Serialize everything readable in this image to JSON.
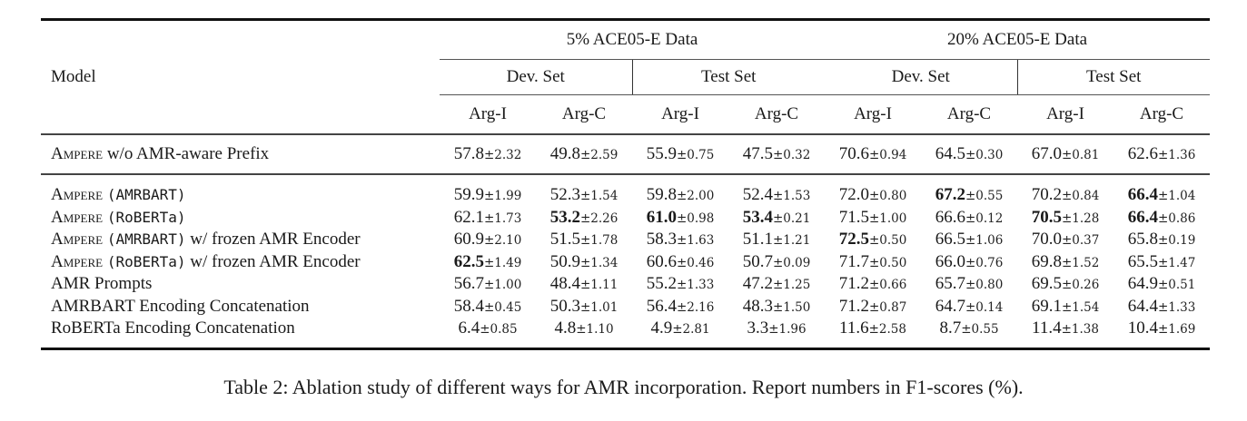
{
  "table": {
    "model_header": "Model",
    "groups": [
      {
        "label": "5% ACE05-E Data",
        "sets": [
          {
            "label": "Dev. Set"
          },
          {
            "label": "Test Set"
          }
        ]
      },
      {
        "label": "20% ACE05-E Data",
        "sets": [
          {
            "label": "Dev. Set"
          },
          {
            "label": "Test Set"
          }
        ]
      }
    ],
    "metrics": [
      "Arg-I",
      "Arg-C",
      "Arg-I",
      "Arg-C",
      "Arg-I",
      "Arg-C",
      "Arg-I",
      "Arg-C"
    ],
    "rows": [
      {
        "model": {
          "prefix": "Ampere",
          "enc": "",
          "suffix": " w/o AMR-aware Prefix"
        },
        "cells": [
          {
            "v": "57.8",
            "sd": "±2.32",
            "bold": false
          },
          {
            "v": "49.8",
            "sd": "±2.59",
            "bold": false
          },
          {
            "v": "55.9",
            "sd": "±0.75",
            "bold": false
          },
          {
            "v": "47.5",
            "sd": "±0.32",
            "bold": false
          },
          {
            "v": "70.6",
            "sd": "±0.94",
            "bold": false
          },
          {
            "v": "64.5",
            "sd": "±0.30",
            "bold": false
          },
          {
            "v": "67.0",
            "sd": "±0.81",
            "bold": false
          },
          {
            "v": "62.6",
            "sd": "±1.36",
            "bold": false
          }
        ]
      },
      {
        "model": {
          "prefix": "Ampere",
          "enc": "(AMRBART)",
          "suffix": ""
        },
        "cells": [
          {
            "v": "59.9",
            "sd": "±1.99",
            "bold": false
          },
          {
            "v": "52.3",
            "sd": "±1.54",
            "bold": false
          },
          {
            "v": "59.8",
            "sd": "±2.00",
            "bold": false
          },
          {
            "v": "52.4",
            "sd": "±1.53",
            "bold": false
          },
          {
            "v": "72.0",
            "sd": "±0.80",
            "bold": false
          },
          {
            "v": "67.2",
            "sd": "±0.55",
            "bold": true
          },
          {
            "v": "70.2",
            "sd": "±0.84",
            "bold": false
          },
          {
            "v": "66.4",
            "sd": "±1.04",
            "bold": true
          }
        ]
      },
      {
        "model": {
          "prefix": "Ampere",
          "enc": "(RoBERTa)",
          "suffix": ""
        },
        "cells": [
          {
            "v": "62.1",
            "sd": "±1.73",
            "bold": false
          },
          {
            "v": "53.2",
            "sd": "±2.26",
            "bold": true
          },
          {
            "v": "61.0",
            "sd": "±0.98",
            "bold": true
          },
          {
            "v": "53.4",
            "sd": "±0.21",
            "bold": true
          },
          {
            "v": "71.5",
            "sd": "±1.00",
            "bold": false
          },
          {
            "v": "66.6",
            "sd": "±0.12",
            "bold": false
          },
          {
            "v": "70.5",
            "sd": "±1.28",
            "bold": true
          },
          {
            "v": "66.4",
            "sd": "±0.86",
            "bold": true
          }
        ]
      },
      {
        "model": {
          "prefix": "Ampere",
          "enc": "(AMRBART)",
          "suffix": " w/ frozen AMR Encoder"
        },
        "cells": [
          {
            "v": "60.9",
            "sd": "±2.10",
            "bold": false
          },
          {
            "v": "51.5",
            "sd": "±1.78",
            "bold": false
          },
          {
            "v": "58.3",
            "sd": "±1.63",
            "bold": false
          },
          {
            "v": "51.1",
            "sd": "±1.21",
            "bold": false
          },
          {
            "v": "72.5",
            "sd": "±0.50",
            "bold": true
          },
          {
            "v": "66.5",
            "sd": "±1.06",
            "bold": false
          },
          {
            "v": "70.0",
            "sd": "±0.37",
            "bold": false
          },
          {
            "v": "65.8",
            "sd": "±0.19",
            "bold": false
          }
        ]
      },
      {
        "model": {
          "prefix": "Ampere",
          "enc": "(RoBERTa)",
          "suffix": " w/ frozen AMR Encoder"
        },
        "cells": [
          {
            "v": "62.5",
            "sd": "±1.49",
            "bold": true
          },
          {
            "v": "50.9",
            "sd": "±1.34",
            "bold": false
          },
          {
            "v": "60.6",
            "sd": "±0.46",
            "bold": false
          },
          {
            "v": "50.7",
            "sd": "±0.09",
            "bold": false
          },
          {
            "v": "71.7",
            "sd": "±0.50",
            "bold": false
          },
          {
            "v": "66.0",
            "sd": "±0.76",
            "bold": false
          },
          {
            "v": "69.8",
            "sd": "±1.52",
            "bold": false
          },
          {
            "v": "65.5",
            "sd": "±1.47",
            "bold": false
          }
        ]
      },
      {
        "model": {
          "prefix": "",
          "enc": "",
          "suffix": "AMR Prompts"
        },
        "cells": [
          {
            "v": "56.7",
            "sd": "±1.00",
            "bold": false
          },
          {
            "v": "48.4",
            "sd": "±1.11",
            "bold": false
          },
          {
            "v": "55.2",
            "sd": "±1.33",
            "bold": false
          },
          {
            "v": "47.2",
            "sd": "±1.25",
            "bold": false
          },
          {
            "v": "71.2",
            "sd": "±0.66",
            "bold": false
          },
          {
            "v": "65.7",
            "sd": "±0.80",
            "bold": false
          },
          {
            "v": "69.5",
            "sd": "±0.26",
            "bold": false
          },
          {
            "v": "64.9",
            "sd": "±0.51",
            "bold": false
          }
        ]
      },
      {
        "model": {
          "prefix": "",
          "enc": "",
          "suffix": "AMRBART Encoding Concatenation"
        },
        "cells": [
          {
            "v": "58.4",
            "sd": "±0.45",
            "bold": false
          },
          {
            "v": "50.3",
            "sd": "±1.01",
            "bold": false
          },
          {
            "v": "56.4",
            "sd": "±2.16",
            "bold": false
          },
          {
            "v": "48.3",
            "sd": "±1.50",
            "bold": false
          },
          {
            "v": "71.2",
            "sd": "±0.87",
            "bold": false
          },
          {
            "v": "64.7",
            "sd": "±0.14",
            "bold": false
          },
          {
            "v": "69.1",
            "sd": "±1.54",
            "bold": false
          },
          {
            "v": "64.4",
            "sd": "±1.33",
            "bold": false
          }
        ]
      },
      {
        "model": {
          "prefix": "",
          "enc": "",
          "suffix": "RoBERTa Encoding Concatenation"
        },
        "cells": [
          {
            "v": "6.4",
            "sd": "±0.85",
            "bold": false
          },
          {
            "v": "4.8",
            "sd": "±1.10",
            "bold": false
          },
          {
            "v": "4.9",
            "sd": "±2.81",
            "bold": false
          },
          {
            "v": "3.3",
            "sd": "±1.96",
            "bold": false
          },
          {
            "v": "11.6",
            "sd": "±2.58",
            "bold": false
          },
          {
            "v": "8.7",
            "sd": "±0.55",
            "bold": false
          },
          {
            "v": "11.4",
            "sd": "±1.38",
            "bold": false
          },
          {
            "v": "10.4",
            "sd": "±1.69",
            "bold": false
          }
        ]
      }
    ]
  },
  "caption": "Table 2: Ablation study of different ways for AMR incorporation. Report numbers in F1-scores (%)."
}
